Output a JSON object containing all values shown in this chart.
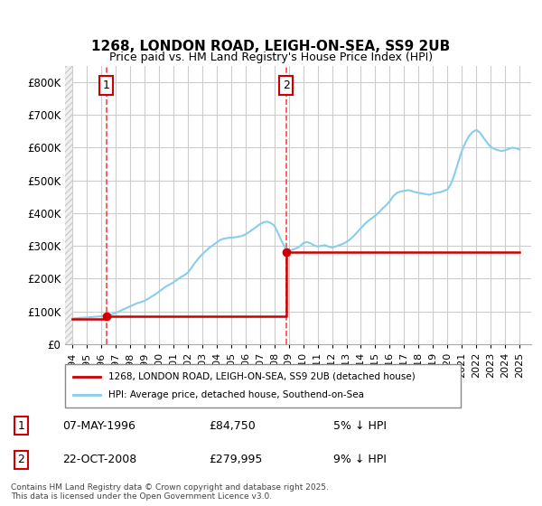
{
  "title1": "1268, LONDON ROAD, LEIGH-ON-SEA, SS9 2UB",
  "title2": "Price paid vs. HM Land Registry's House Price Index (HPI)",
  "ylabel": "",
  "ylim": [
    0,
    850000
  ],
  "yticks": [
    0,
    100000,
    200000,
    300000,
    400000,
    500000,
    600000,
    700000,
    800000
  ],
  "ytick_labels": [
    "£0",
    "£100K",
    "£200K",
    "£300K",
    "£400K",
    "£500K",
    "£600K",
    "£700K",
    "£800K"
  ],
  "xlim_start": 1993.5,
  "xlim_end": 2025.8,
  "xticks": [
    1994,
    1995,
    1996,
    1997,
    1998,
    1999,
    2000,
    2001,
    2002,
    2003,
    2004,
    2005,
    2006,
    2007,
    2008,
    2009,
    2010,
    2011,
    2012,
    2013,
    2014,
    2015,
    2016,
    2017,
    2018,
    2019,
    2020,
    2021,
    2022,
    2023,
    2024,
    2025
  ],
  "hpi_color": "#87CEEB",
  "price_color": "#CC0000",
  "vline_color": "#FF4444",
  "annotation_box_color": "#CC0000",
  "background_hatch_color": "#E8E8E8",
  "grid_color": "#CCCCCC",
  "sale1_x": 1996.35,
  "sale1_y": 84750,
  "sale1_label": "1",
  "sale1_date": "07-MAY-1996",
  "sale1_price": "£84,750",
  "sale1_hpi": "5% ↓ HPI",
  "sale2_x": 2008.81,
  "sale2_y": 279995,
  "sale2_label": "2",
  "sale2_date": "22-OCT-2008",
  "sale2_price": "£279,995",
  "sale2_hpi": "9% ↓ HPI",
  "legend_line1": "1268, LONDON ROAD, LEIGH-ON-SEA, SS9 2UB (detached house)",
  "legend_line2": "HPI: Average price, detached house, Southend-on-Sea",
  "footer": "Contains HM Land Registry data © Crown copyright and database right 2025.\nThis data is licensed under the Open Government Licence v3.0.",
  "hpi_data_x": [
    1994.0,
    1994.25,
    1994.5,
    1994.75,
    1995.0,
    1995.25,
    1995.5,
    1995.75,
    1996.0,
    1996.25,
    1996.5,
    1996.75,
    1997.0,
    1997.25,
    1997.5,
    1997.75,
    1998.0,
    1998.25,
    1998.5,
    1998.75,
    1999.0,
    1999.25,
    1999.5,
    1999.75,
    2000.0,
    2000.25,
    2000.5,
    2000.75,
    2001.0,
    2001.25,
    2001.5,
    2001.75,
    2002.0,
    2002.25,
    2002.5,
    2002.75,
    2003.0,
    2003.25,
    2003.5,
    2003.75,
    2004.0,
    2004.25,
    2004.5,
    2004.75,
    2005.0,
    2005.25,
    2005.5,
    2005.75,
    2006.0,
    2006.25,
    2006.5,
    2006.75,
    2007.0,
    2007.25,
    2007.5,
    2007.75,
    2008.0,
    2008.25,
    2008.5,
    2008.75,
    2009.0,
    2009.25,
    2009.5,
    2009.75,
    2010.0,
    2010.25,
    2010.5,
    2010.75,
    2011.0,
    2011.25,
    2011.5,
    2011.75,
    2012.0,
    2012.25,
    2012.5,
    2012.75,
    2013.0,
    2013.25,
    2013.5,
    2013.75,
    2014.0,
    2014.25,
    2014.5,
    2014.75,
    2015.0,
    2015.25,
    2015.5,
    2015.75,
    2016.0,
    2016.25,
    2016.5,
    2016.75,
    2017.0,
    2017.25,
    2017.5,
    2017.75,
    2018.0,
    2018.25,
    2018.5,
    2018.75,
    2019.0,
    2019.25,
    2019.5,
    2019.75,
    2020.0,
    2020.25,
    2020.5,
    2020.75,
    2021.0,
    2021.25,
    2021.5,
    2021.75,
    2022.0,
    2022.25,
    2022.5,
    2022.75,
    2023.0,
    2023.25,
    2023.5,
    2023.75,
    2024.0,
    2024.25,
    2024.5,
    2024.75,
    2025.0
  ],
  "hpi_data_y": [
    78000,
    79000,
    80000,
    80500,
    81000,
    82000,
    83000,
    84000,
    85000,
    87000,
    89000,
    91000,
    95000,
    100000,
    105000,
    110000,
    115000,
    120000,
    125000,
    128000,
    132000,
    138000,
    145000,
    152000,
    160000,
    168000,
    176000,
    182000,
    188000,
    196000,
    204000,
    210000,
    218000,
    232000,
    248000,
    262000,
    274000,
    284000,
    294000,
    302000,
    310000,
    318000,
    322000,
    324000,
    325000,
    326000,
    328000,
    330000,
    335000,
    342000,
    350000,
    358000,
    366000,
    372000,
    374000,
    370000,
    362000,
    340000,
    315000,
    295000,
    285000,
    288000,
    292000,
    298000,
    308000,
    312000,
    308000,
    302000,
    298000,
    300000,
    302000,
    298000,
    295000,
    298000,
    302000,
    306000,
    312000,
    320000,
    330000,
    342000,
    354000,
    366000,
    376000,
    384000,
    392000,
    402000,
    414000,
    424000,
    436000,
    452000,
    462000,
    466000,
    468000,
    470000,
    468000,
    464000,
    462000,
    460000,
    458000,
    456000,
    460000,
    462000,
    464000,
    468000,
    472000,
    490000,
    520000,
    556000,
    590000,
    616000,
    636000,
    648000,
    654000,
    646000,
    630000,
    615000,
    602000,
    596000,
    592000,
    590000,
    592000,
    596000,
    600000,
    598000,
    594000
  ],
  "price_data_x": [
    1994.0,
    1996.35,
    1996.35,
    2008.81,
    2008.81,
    2025.0
  ],
  "price_data_y": [
    78000,
    78000,
    84750,
    84750,
    279995,
    279995
  ]
}
